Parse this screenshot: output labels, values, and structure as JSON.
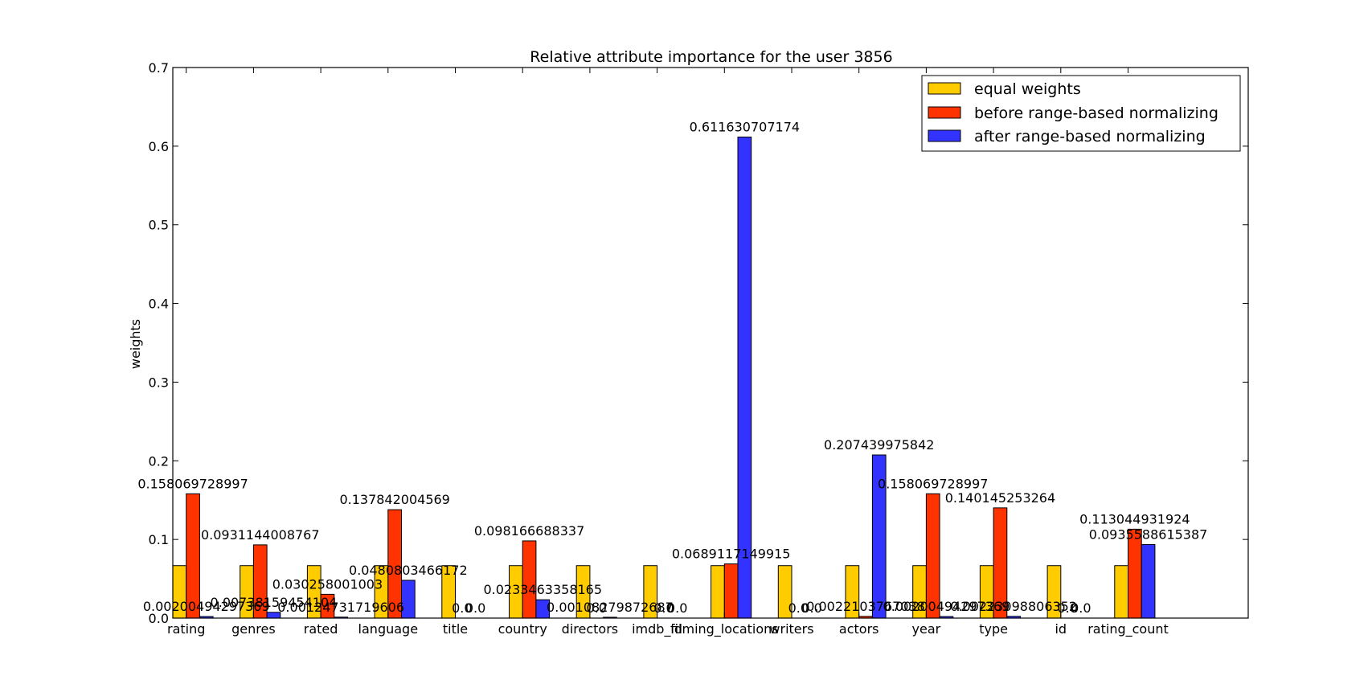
{
  "chart_data": {
    "type": "bar",
    "title": "Relative attribute importance for the user 3856",
    "xlabel": "",
    "ylabel": "weights",
    "ylim": [
      0,
      0.7
    ],
    "yticks": [
      "0.0",
      "0.1",
      "0.2",
      "0.3",
      "0.4",
      "0.5",
      "0.6",
      "0.7"
    ],
    "grid": false,
    "legend_position": "top-right",
    "categories": [
      "rating",
      "genres",
      "rated",
      "language",
      "title",
      "country",
      "directors",
      "imdb_id",
      "filming_locations",
      "writers",
      "actors",
      "year",
      "type",
      "id",
      "rating_count"
    ],
    "series": [
      {
        "name": "equal weights",
        "color": "#ffcc00",
        "values": [
          0.0667,
          0.0667,
          0.0667,
          0.0667,
          0.0667,
          0.0667,
          0.0667,
          0.0667,
          0.0667,
          0.0667,
          0.0667,
          0.0667,
          0.0667,
          0.0667,
          0.0667
        ],
        "labels": [
          "",
          "",
          "",
          "",
          "",
          "",
          "",
          "",
          "",
          "",
          "",
          "",
          "",
          "",
          ""
        ]
      },
      {
        "name": "before range-based normalizing",
        "color": "#ff3300",
        "values": [
          0.158069728997,
          0.0931144008767,
          0.030258001003,
          0.137842004569,
          0.0,
          0.098166688337,
          0.0,
          0.0,
          0.0689117149915,
          0.0,
          0.0022103767038,
          0.158069728997,
          0.140145253264,
          0.0,
          0.113044931924
        ],
        "labels": [
          "0.158069728997",
          "0.0931144008767",
          "0.030258001003",
          "0.137842004569",
          "0.0",
          "0.098166688337",
          "0.0",
          "0.0",
          "0.0689117149915",
          "0.0",
          "0.0022103767038",
          "0.158069728997",
          "0.140145253264",
          "0.0",
          "0.113044931924"
        ]
      },
      {
        "name": "after range-based normalizing",
        "color": "#3333ff",
        "values": [
          0.00200494297369,
          0.00738159454104,
          0.00124731719606,
          0.0480803466172,
          0.0,
          0.0233463358165,
          0.00108279872687,
          0.0,
          0.611630707174,
          0.0,
          0.207439975842,
          0.00200494297369,
          0.00223098806352,
          0.0,
          0.0935588615387
        ],
        "labels": [
          "0.00200494297369",
          "0.00738159454104",
          "0.00124731719606",
          "0.0480803466172",
          "0.0",
          "0.0233463358165",
          "0.00108279872687",
          "0.0",
          "0.611630707174",
          "0.0",
          "0.207439975842",
          "0.00200494297369",
          "0.00223098806352",
          "0.0",
          "0.0935588615387"
        ]
      }
    ]
  }
}
